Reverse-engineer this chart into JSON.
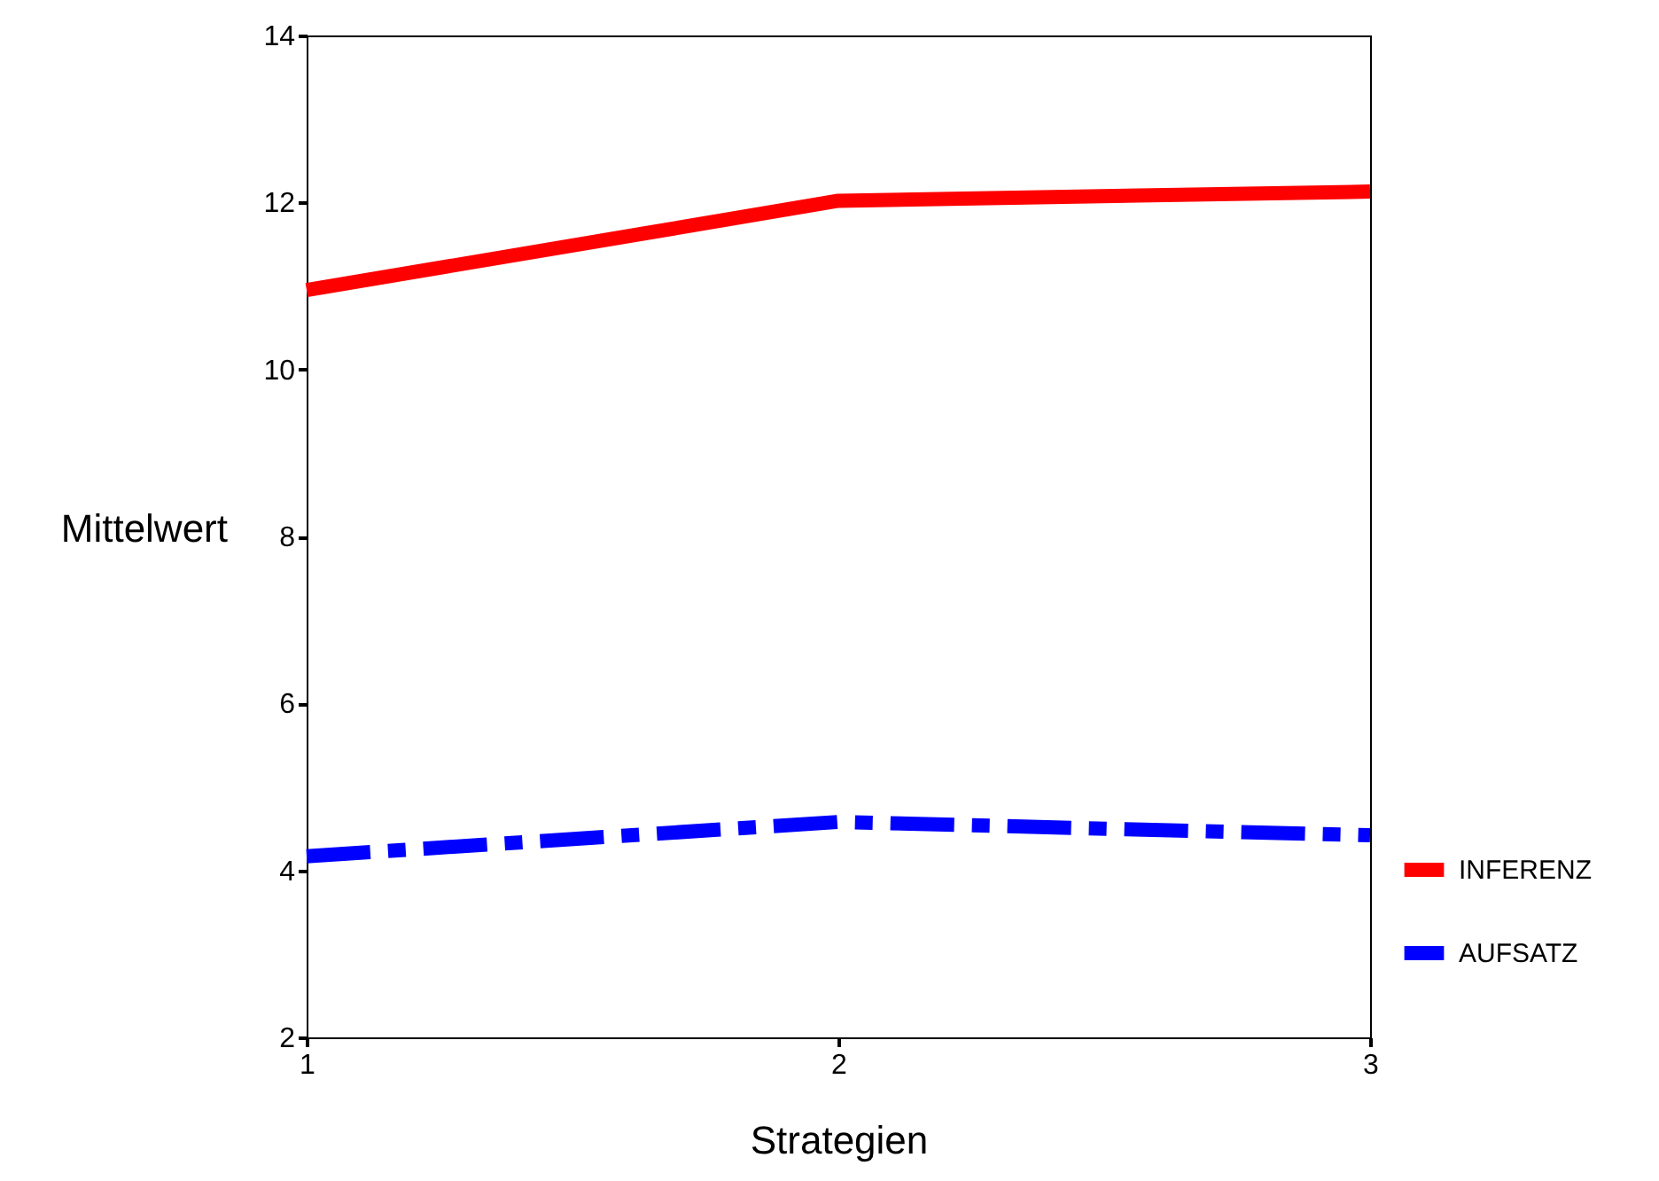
{
  "chart_data": {
    "type": "line",
    "xlabel": "Strategien",
    "ylabel": "Mittelwert",
    "x": [
      1,
      2,
      3
    ],
    "xlim": [
      1,
      3
    ],
    "xticks": [
      1,
      2,
      3
    ],
    "ylim": [
      2,
      14
    ],
    "yticks": [
      2,
      4,
      6,
      8,
      10,
      12,
      14
    ],
    "series": [
      {
        "name": "INFERENZ",
        "color": "#ff0000",
        "line_style": "solid",
        "values": [
          10.95,
          12.02,
          12.13
        ]
      },
      {
        "name": "AUFSATZ",
        "color": "#0000ff",
        "line_style": "dashdot",
        "values": [
          4.17,
          4.58,
          4.42
        ]
      }
    ],
    "grid": false,
    "legend": "right",
    "marker": "none"
  }
}
